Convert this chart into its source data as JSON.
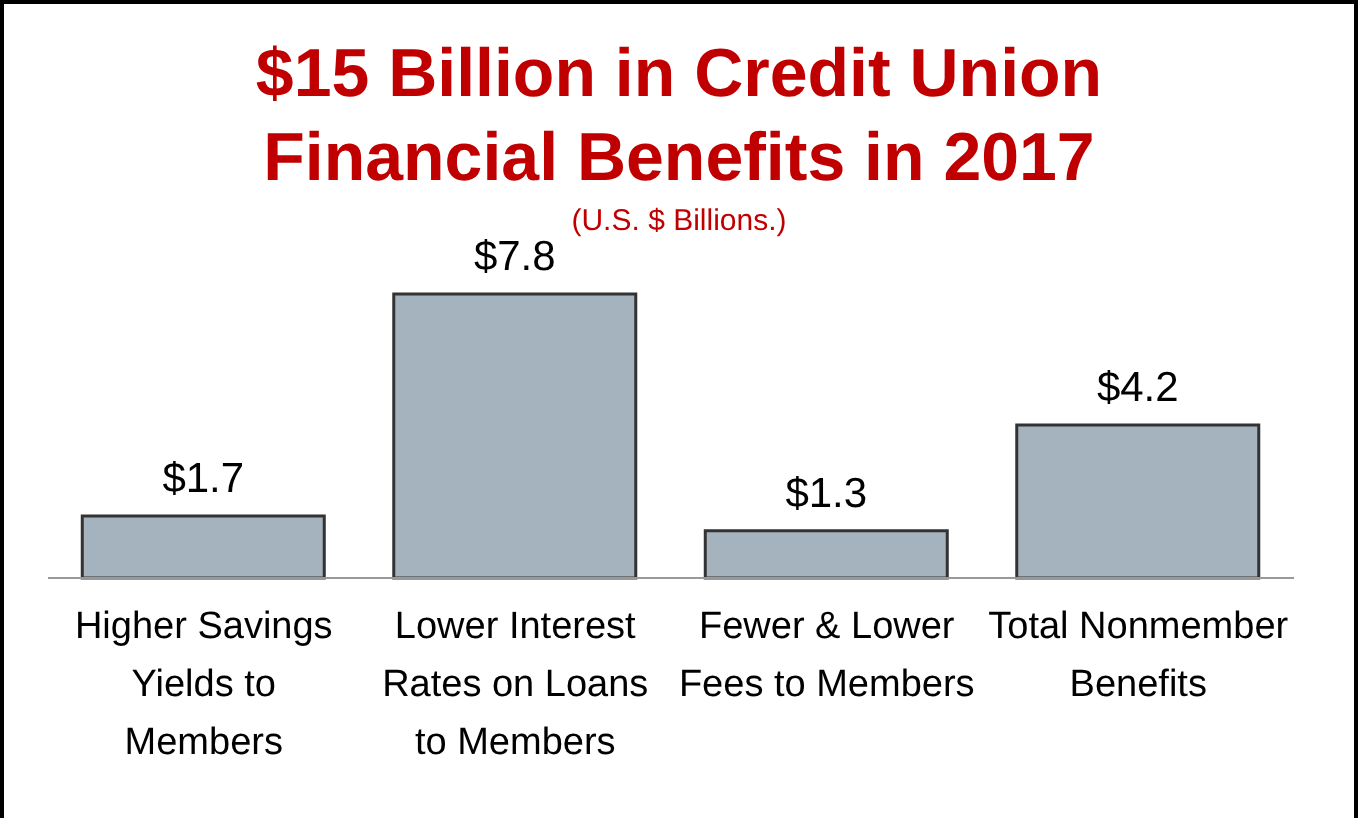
{
  "chart_data": {
    "type": "bar",
    "title": "$15 Billion in Credit Union Financial Benefits in 2017",
    "subtitle": "(U.S. $ Billions.)",
    "categories": [
      "Higher Savings Yields to Members",
      "Lower Interest Rates on Loans to Members",
      "Fewer & Lower Fees to Members",
      "Total Nonmember Benefits"
    ],
    "values": [
      1.7,
      7.8,
      1.3,
      4.2
    ],
    "value_labels": [
      "$1.7",
      "$7.8",
      "$1.3",
      "$4.2"
    ],
    "color": "#a5b3bf",
    "grid": false,
    "legend": false
  }
}
